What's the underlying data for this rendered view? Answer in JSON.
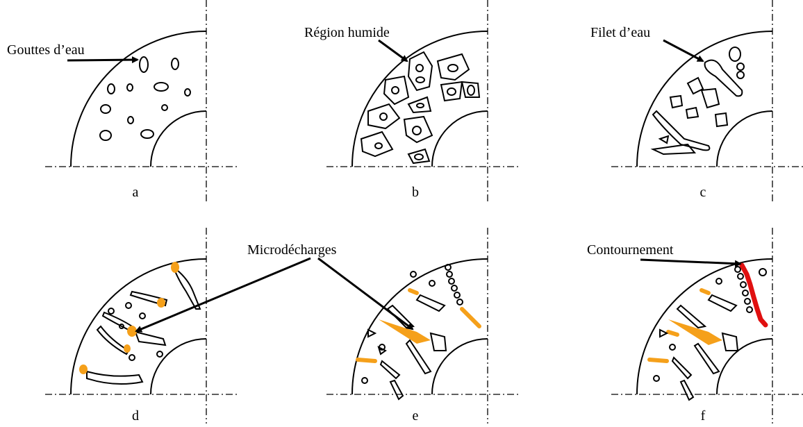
{
  "annotations": [
    "Gouttes d’eau",
    "Région humide",
    "Filet d’eau",
    "Microdécharges",
    "Contournement"
  ],
  "panels": [
    "a",
    "b",
    "c",
    "d",
    "e",
    "f"
  ]
}
